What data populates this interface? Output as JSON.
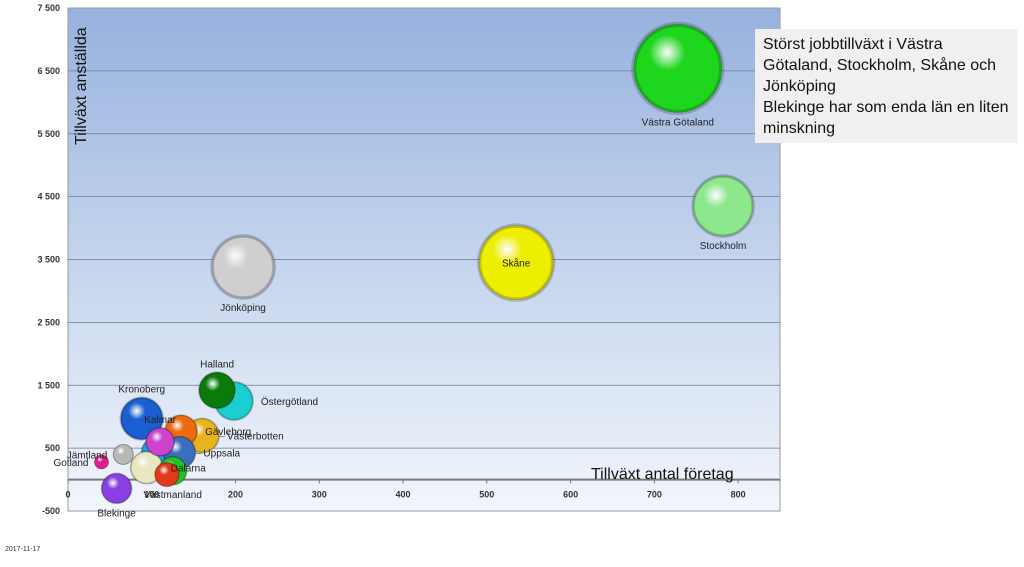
{
  "chart_data": {
    "type": "bubble",
    "title": "",
    "ylabel": "Tillväxt anställda",
    "xlabel": "Tillväxt antal företag",
    "xlim": [
      0,
      850
    ],
    "ylim": [
      -500,
      7500
    ],
    "x_ticks": [
      0,
      100,
      200,
      300,
      400,
      500,
      600,
      700,
      800
    ],
    "y_ticks": [
      -500,
      500,
      1500,
      2500,
      3500,
      4500,
      5500,
      6500,
      7500
    ],
    "x_tick_labels": [
      "0",
      "100",
      "200",
      "300",
      "400",
      "500",
      "600",
      "700",
      "800"
    ],
    "y_tick_labels": [
      "-500",
      "500",
      "1 500",
      "2 500",
      "3 500",
      "4 500",
      "5 500",
      "6 500",
      "7 500"
    ],
    "grid": true,
    "points": [
      {
        "name": "Västra Götaland",
        "x": 728,
        "y": 6540,
        "size": 44,
        "color": "#1fd61f",
        "label_pos": "below"
      },
      {
        "name": "Stockholm",
        "x": 782,
        "y": 4350,
        "size": 30,
        "color": "#8de88d",
        "label_pos": "below"
      },
      {
        "name": "Skåne",
        "x": 535,
        "y": 3450,
        "size": 37,
        "color": "#eeee00",
        "label_pos": "center"
      },
      {
        "name": "Jönköping",
        "x": 209,
        "y": 3380,
        "size": 31,
        "color": "#cfcfcf",
        "label_pos": "below"
      },
      {
        "name": "Östergötland",
        "x": 198,
        "y": 1250,
        "size": 19,
        "color": "#1acfcf",
        "label_pos": "right"
      },
      {
        "name": "Halland",
        "x": 178,
        "y": 1420,
        "size": 18,
        "color": "#0a7a0a",
        "label_pos": "above"
      },
      {
        "name": "Kronoberg",
        "x": 88,
        "y": 970,
        "size": 21,
        "color": "#1a5fd0",
        "label_pos": "above"
      },
      {
        "name": "Västerbotten",
        "x": 160,
        "y": 700,
        "size": 17,
        "color": "#e8b41e",
        "label_pos": "right"
      },
      {
        "name": "Gävleborg",
        "x": 135,
        "y": 770,
        "size": 16,
        "color": "#ee6a10",
        "label_pos": "right"
      },
      {
        "name": "Uppsala",
        "x": 133,
        "y": 430,
        "size": 16,
        "color": "#3a6fc0",
        "label_pos": "right"
      },
      {
        "name": "Kalmar",
        "x": 110,
        "y": 600,
        "size": 14,
        "color": "#cc44cc",
        "label_pos": "above"
      },
      {
        "name": "Dalarna",
        "x": 94,
        "y": 190,
        "size": 16,
        "color": "#e8e8c0",
        "label_pos": "right"
      },
      {
        "name": "Västmanland",
        "x": 125,
        "y": 140,
        "size": 14,
        "color": "#22c022",
        "label_pos": "below"
      },
      {
        "name": "Jämtland",
        "x": 66,
        "y": 400,
        "size": 10,
        "color": "#b8b8b8",
        "label_pos": "left"
      },
      {
        "name": "Gotland",
        "x": 40,
        "y": 280,
        "size": 7,
        "color": "#e0208a",
        "label_pos": "left"
      },
      {
        "name": "Blekinge",
        "x": 58,
        "y": -140,
        "size": 15,
        "color": "#8a3fe0",
        "label_pos": "below"
      },
      {
        "name": "",
        "x": 108,
        "y": 420,
        "size": 17,
        "color": "#2a9ae0",
        "label_pos": "none"
      },
      {
        "name": "",
        "x": 118,
        "y": 80,
        "size": 12,
        "color": "#e03a1a",
        "label_pos": "none"
      }
    ]
  },
  "annotation": {
    "lines": [
      "Störst jobbtillväxt i Västra Götaland, Stockholm, Skåne och Jönköping",
      "Blekinge har som enda län en liten minskning"
    ]
  },
  "footer": {
    "date": "2017-11-17"
  }
}
